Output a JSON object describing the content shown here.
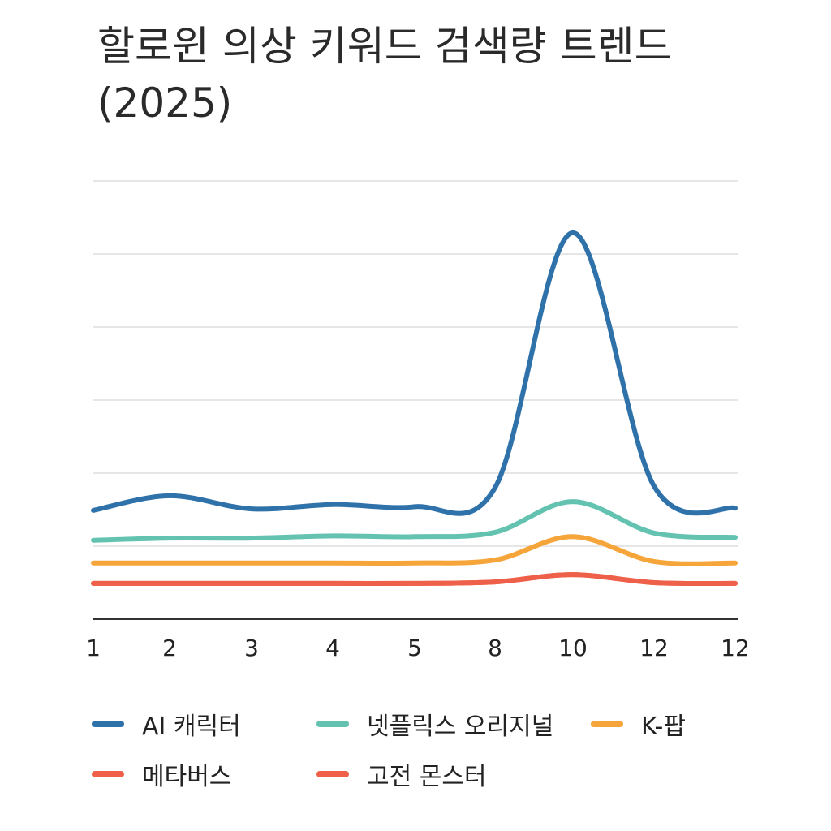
{
  "chart_data": {
    "type": "line",
    "title": "할로윈 의상 키워드 검색량 트렌드 (2025)",
    "xlabel": "",
    "ylabel": "",
    "categories": [
      "1",
      "2",
      "3",
      "4",
      "5",
      "8",
      "10",
      "12",
      "12"
    ],
    "ylim": [
      0,
      60
    ],
    "grid": true,
    "legend_position": "bottom",
    "series": [
      {
        "name": "AI 캐릭터",
        "color": "#2f72aa",
        "values": [
          14.9,
          16.9,
          15.1,
          15.7,
          15.4,
          18.0,
          52.9,
          18.2,
          15.2
        ]
      },
      {
        "name": "넷플릭스 오리지널",
        "color": "#63c3b0",
        "values": [
          10.8,
          11.1,
          11.1,
          11.4,
          11.3,
          11.9,
          16.1,
          11.8,
          11.2
        ]
      },
      {
        "name": "K-팝",
        "color": "#f6a53a",
        "values": [
          7.7,
          7.7,
          7.7,
          7.7,
          7.7,
          8.1,
          11.3,
          7.9,
          7.7
        ]
      },
      {
        "name": "메타버스",
        "color": "#ee6049",
        "values": [
          4.9,
          4.9,
          4.9,
          4.9,
          4.9,
          5.1,
          6.1,
          5.0,
          4.9
        ]
      },
      {
        "name": "고전 몬스터",
        "color": "#ee6049",
        "values": [
          4.9,
          4.9,
          4.9,
          4.9,
          4.9,
          5.1,
          6.1,
          5.0,
          4.9
        ]
      }
    ]
  }
}
